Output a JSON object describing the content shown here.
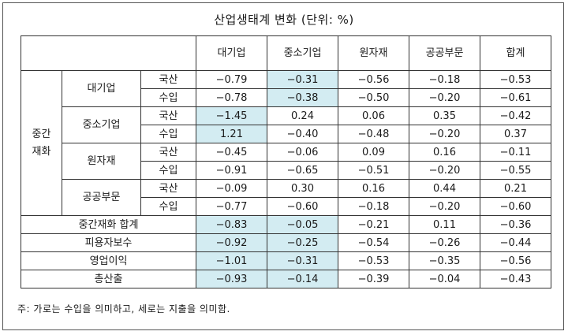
{
  "title": "산업생태계 변화 (단위: %)",
  "highlight_color": "#d3ecf2",
  "columns": [
    "대기업",
    "중소기업",
    "원자재",
    "공공부문",
    "합계"
  ],
  "row_group_label": [
    "중간",
    "재화"
  ],
  "sectors": [
    {
      "name": "대기업",
      "rows": [
        {
          "type": "국산",
          "values": [
            "−0.79",
            "−0.31",
            "−0.56",
            "−0.18",
            "−0.53"
          ]
        },
        {
          "type": "수입",
          "values": [
            "−0.78",
            "−0.38",
            "−0.50",
            "−0.20",
            "−0.61"
          ]
        }
      ]
    },
    {
      "name": "중소기업",
      "rows": [
        {
          "type": "국산",
          "values": [
            "−1.45",
            "0.24",
            "0.06",
            "0.35",
            "−0.42"
          ]
        },
        {
          "type": "수입",
          "values": [
            "1.21",
            "−0.40",
            "−0.48",
            "−0.20",
            "0.37"
          ]
        }
      ]
    },
    {
      "name": "원자재",
      "rows": [
        {
          "type": "국산",
          "values": [
            "−0.45",
            "−0.06",
            "0.09",
            "0.16",
            "−0.11"
          ]
        },
        {
          "type": "수입",
          "values": [
            "−0.91",
            "−0.65",
            "−0.51",
            "−0.20",
            "−0.55"
          ]
        }
      ]
    },
    {
      "name": "공공부문",
      "rows": [
        {
          "type": "국산",
          "values": [
            "−0.09",
            "0.30",
            "0.16",
            "0.44",
            "0.21"
          ]
        },
        {
          "type": "수입",
          "values": [
            "−0.77",
            "−0.60",
            "−0.18",
            "−0.20",
            "−0.60"
          ]
        }
      ]
    }
  ],
  "summary_rows": [
    {
      "label": "중간재화 합계",
      "values": [
        "−0.83",
        "−0.05",
        "−0.21",
        "0.11",
        "−0.36"
      ]
    },
    {
      "label": "피용자보수",
      "values": [
        "−0.92",
        "−0.25",
        "−0.54",
        "−0.26",
        "−0.44"
      ]
    },
    {
      "label": "영업이익",
      "values": [
        "−1.01",
        "−0.31",
        "−0.53",
        "−0.35",
        "−0.56"
      ]
    },
    {
      "label": "총산출",
      "values": [
        "−0.93",
        "−0.14",
        "−0.39",
        "−0.04",
        "−0.43"
      ]
    }
  ],
  "note": "주: 가로는 수입을 의미하고, 세로는 지출을 의미함."
}
